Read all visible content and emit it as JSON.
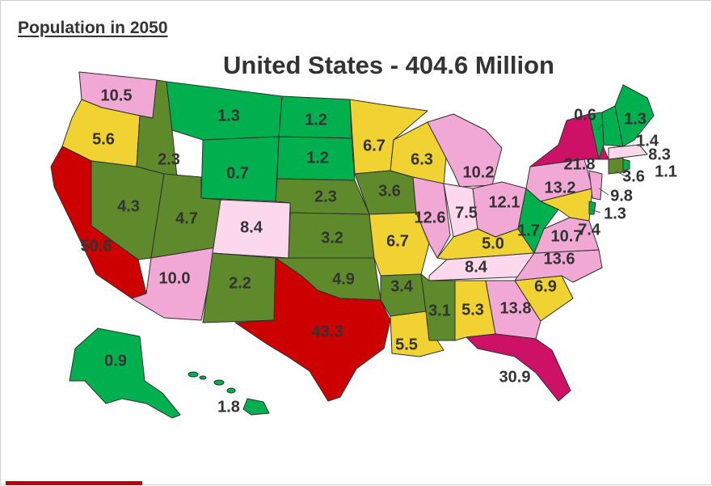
{
  "heading": "Population in 2050",
  "title": "United States - 404.6 Million",
  "colors": {
    "dark_red": "#cc0000",
    "magenta": "#cc1166",
    "light_pink": "#f2a8d4",
    "pale_pink": "#fbd8ec",
    "yellow": "#f0d232",
    "olive": "#5e8a2c",
    "green": "#00b04f",
    "accent_bar": "#c00000"
  },
  "states": [
    {
      "name": "washington",
      "label": "10.5",
      "color": "#f2a8d4"
    },
    {
      "name": "oregon",
      "label": "5.6",
      "color": "#f0d232"
    },
    {
      "name": "california",
      "label": "50.6",
      "color": "#cc0000"
    },
    {
      "name": "nevada",
      "label": "4.3",
      "color": "#5e8a2c"
    },
    {
      "name": "idaho",
      "label": "2.3",
      "color": "#5e8a2c"
    },
    {
      "name": "montana",
      "label": "1.3",
      "color": "#00b04f"
    },
    {
      "name": "wyoming",
      "label": "0.7",
      "color": "#00b04f"
    },
    {
      "name": "utah",
      "label": "4.7",
      "color": "#5e8a2c"
    },
    {
      "name": "arizona",
      "label": "10.0",
      "color": "#f2a8d4"
    },
    {
      "name": "colorado",
      "label": "8.4",
      "color": "#fbd8ec"
    },
    {
      "name": "new-mexico",
      "label": "2.2",
      "color": "#5e8a2c"
    },
    {
      "name": "north-dakota",
      "label": "1.2",
      "color": "#00b04f"
    },
    {
      "name": "south-dakota",
      "label": "1.2",
      "color": "#00b04f"
    },
    {
      "name": "nebraska",
      "label": "2.3",
      "color": "#5e8a2c"
    },
    {
      "name": "kansas",
      "label": "3.2",
      "color": "#5e8a2c"
    },
    {
      "name": "oklahoma",
      "label": "4.9",
      "color": "#5e8a2c"
    },
    {
      "name": "texas",
      "label": "43.3",
      "color": "#cc0000"
    },
    {
      "name": "minnesota",
      "label": "6.7",
      "color": "#f0d232"
    },
    {
      "name": "iowa",
      "label": "3.6",
      "color": "#5e8a2c"
    },
    {
      "name": "missouri",
      "label": "6.7",
      "color": "#f0d232"
    },
    {
      "name": "arkansas",
      "label": "3.4",
      "color": "#5e8a2c"
    },
    {
      "name": "louisiana",
      "label": "5.5",
      "color": "#f0d232"
    },
    {
      "name": "wisconsin",
      "label": "6.3",
      "color": "#f0d232"
    },
    {
      "name": "illinois",
      "label": "12.6",
      "color": "#f2a8d4"
    },
    {
      "name": "michigan",
      "label": "10.2",
      "color": "#f2a8d4"
    },
    {
      "name": "indiana",
      "label": "7.5",
      "color": "#fbd8ec"
    },
    {
      "name": "ohio",
      "label": "12.1",
      "color": "#f2a8d4"
    },
    {
      "name": "kentucky",
      "label": "5.0",
      "color": "#f0d232"
    },
    {
      "name": "tennessee",
      "label": "8.4",
      "color": "#fbd8ec"
    },
    {
      "name": "mississippi",
      "label": "3.1",
      "color": "#5e8a2c"
    },
    {
      "name": "alabama",
      "label": "5.3",
      "color": "#f0d232"
    },
    {
      "name": "georgia",
      "label": "13.8",
      "color": "#f2a8d4"
    },
    {
      "name": "florida",
      "label": "30.9",
      "color": "#cc1166"
    },
    {
      "name": "south-carolina",
      "label": "6.9",
      "color": "#f0d232"
    },
    {
      "name": "north-carolina",
      "label": "13.6",
      "color": "#f2a8d4"
    },
    {
      "name": "virginia",
      "label": "10.7",
      "color": "#f2a8d4"
    },
    {
      "name": "west-virginia",
      "label": "1.7",
      "color": "#00b04f"
    },
    {
      "name": "pennsylvania",
      "label": "13.2",
      "color": "#f2a8d4"
    },
    {
      "name": "new-york",
      "label": "21.8",
      "color": "#cc1166"
    },
    {
      "name": "maryland",
      "label": "7.4",
      "color": "#f0d232"
    },
    {
      "name": "delaware",
      "label": "1.3",
      "color": "#00b04f"
    },
    {
      "name": "new-jersey",
      "label": "9.8",
      "color": "#f2a8d4"
    },
    {
      "name": "connecticut",
      "label": "3.6",
      "color": "#5e8a2c"
    },
    {
      "name": "rhode-island",
      "label": "1.1",
      "color": "#00b04f"
    },
    {
      "name": "massachusetts",
      "label": "8.3",
      "color": "#fbd8ec"
    },
    {
      "name": "vermont",
      "label": "0.6",
      "color": "#00b04f"
    },
    {
      "name": "new-hampshire",
      "label": "1.4",
      "color": "#00b04f"
    },
    {
      "name": "maine",
      "label": "1.3",
      "color": "#00b04f"
    },
    {
      "name": "alaska",
      "label": "0.9",
      "color": "#00b04f"
    },
    {
      "name": "hawaii",
      "label": "1.8",
      "color": "#00b04f"
    }
  ]
}
